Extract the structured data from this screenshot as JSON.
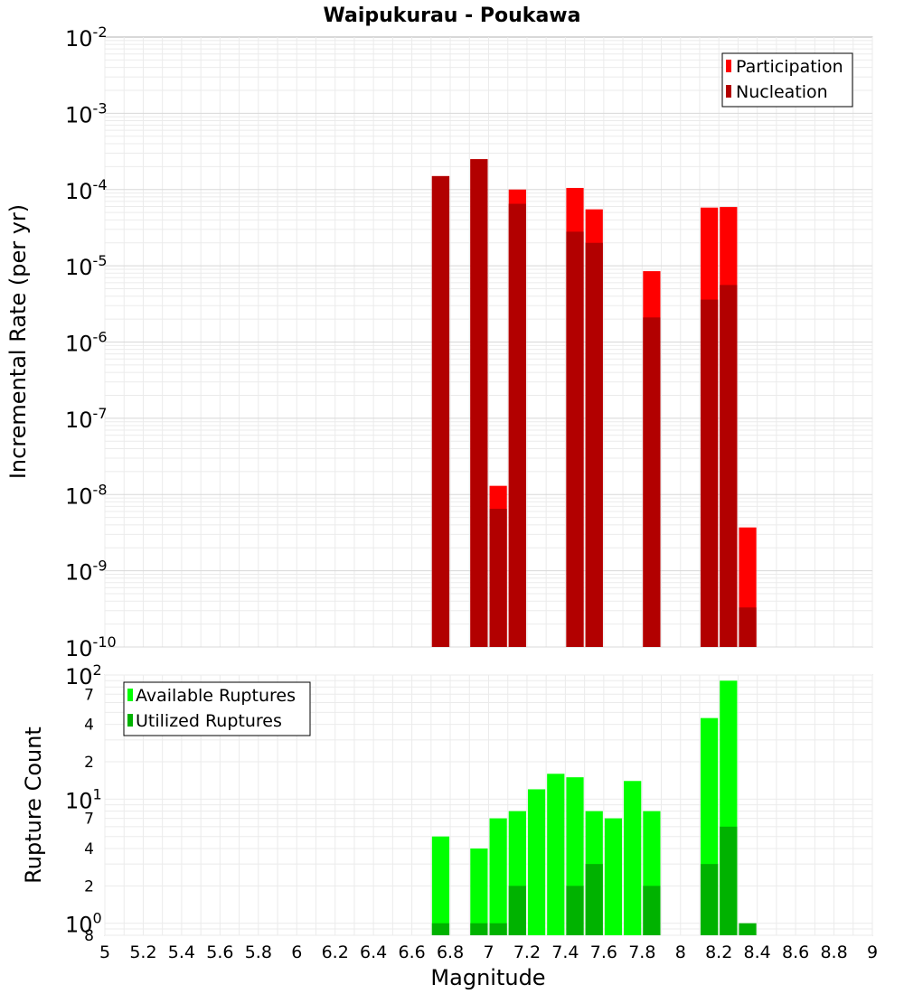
{
  "title": "Waipukurau - Poukawa",
  "colors": {
    "participation": "#ff0000",
    "nucleation": "#b20000",
    "available": "#00ff00",
    "utilized": "#00b200"
  },
  "chart_data": [
    {
      "type": "bar",
      "ylabel": "Incremental Rate (per yr)",
      "yscale": "log",
      "ylim": [
        1e-10,
        0.01
      ],
      "xlim": [
        5,
        9
      ],
      "bin_width": 0.1,
      "legend_placement": "top-right",
      "y_tick_exponents": [
        "-2",
        "-3",
        "-4",
        "-5",
        "-6",
        "-7",
        "-8",
        "-9",
        "-10"
      ],
      "y_tick_base": "10",
      "series": [
        {
          "name": "Participation",
          "x": [
            6.75,
            6.95,
            7.05,
            7.15,
            7.45,
            7.55,
            7.85,
            8.15,
            8.25,
            8.35
          ],
          "values": [
            0.00015,
            0.00025,
            1.3e-08,
            0.0001,
            0.000105,
            5.5e-05,
            8.5e-06,
            5.8e-05,
            5.9e-05,
            3.7e-09
          ]
        },
        {
          "name": "Nucleation",
          "x": [
            6.75,
            6.95,
            7.05,
            7.15,
            7.45,
            7.55,
            7.85,
            8.15,
            8.25,
            8.35
          ],
          "values": [
            0.00015,
            0.00025,
            6.5e-09,
            6.5e-05,
            2.8e-05,
            2e-05,
            2.1e-06,
            3.6e-06,
            5.6e-06,
            3.3e-10
          ]
        }
      ]
    },
    {
      "type": "bar",
      "xlabel": "Magnitude",
      "ylabel": "Rupture Count",
      "yscale": "log",
      "ylim": [
        0.8,
        100
      ],
      "xlim": [
        5,
        9
      ],
      "bin_width": 0.1,
      "legend_placement": "top-left",
      "x_ticks": [
        "5",
        "5.2",
        "5.4",
        "5.6",
        "5.8",
        "6",
        "6.2",
        "6.4",
        "6.6",
        "6.8",
        "7",
        "7.2",
        "7.4",
        "7.6",
        "7.8",
        "8",
        "8.2",
        "8.4",
        "8.6",
        "8.8",
        "9"
      ],
      "y_major": [
        {
          "value": 1,
          "base": "10",
          "exp": "0"
        },
        {
          "value": 10,
          "base": "10",
          "exp": "1"
        },
        {
          "value": 100,
          "base": "10",
          "exp": "2"
        }
      ],
      "y_minor": [
        {
          "value": 0.8,
          "label": "8"
        },
        {
          "value": 2,
          "label": "2"
        },
        {
          "value": 4,
          "label": "4"
        },
        {
          "value": 7,
          "label": "7"
        },
        {
          "value": 20,
          "label": "2"
        },
        {
          "value": 40,
          "label": "4"
        },
        {
          "value": 70,
          "label": "7"
        }
      ],
      "series": [
        {
          "name": "Available Ruptures",
          "x": [
            6.75,
            6.95,
            7.05,
            7.15,
            7.25,
            7.35,
            7.45,
            7.55,
            7.65,
            7.75,
            7.85,
            8.15,
            8.25
          ],
          "values": [
            5,
            4,
            7,
            8,
            12,
            16,
            15,
            8,
            7,
            14,
            8,
            45,
            90
          ]
        },
        {
          "name": "Utilized Ruptures",
          "x": [
            6.75,
            6.95,
            7.05,
            7.15,
            7.45,
            7.55,
            7.85,
            8.15,
            8.25,
            8.35
          ],
          "values": [
            1,
            1,
            1,
            2,
            2,
            3,
            2,
            3,
            6,
            1
          ]
        }
      ]
    }
  ]
}
